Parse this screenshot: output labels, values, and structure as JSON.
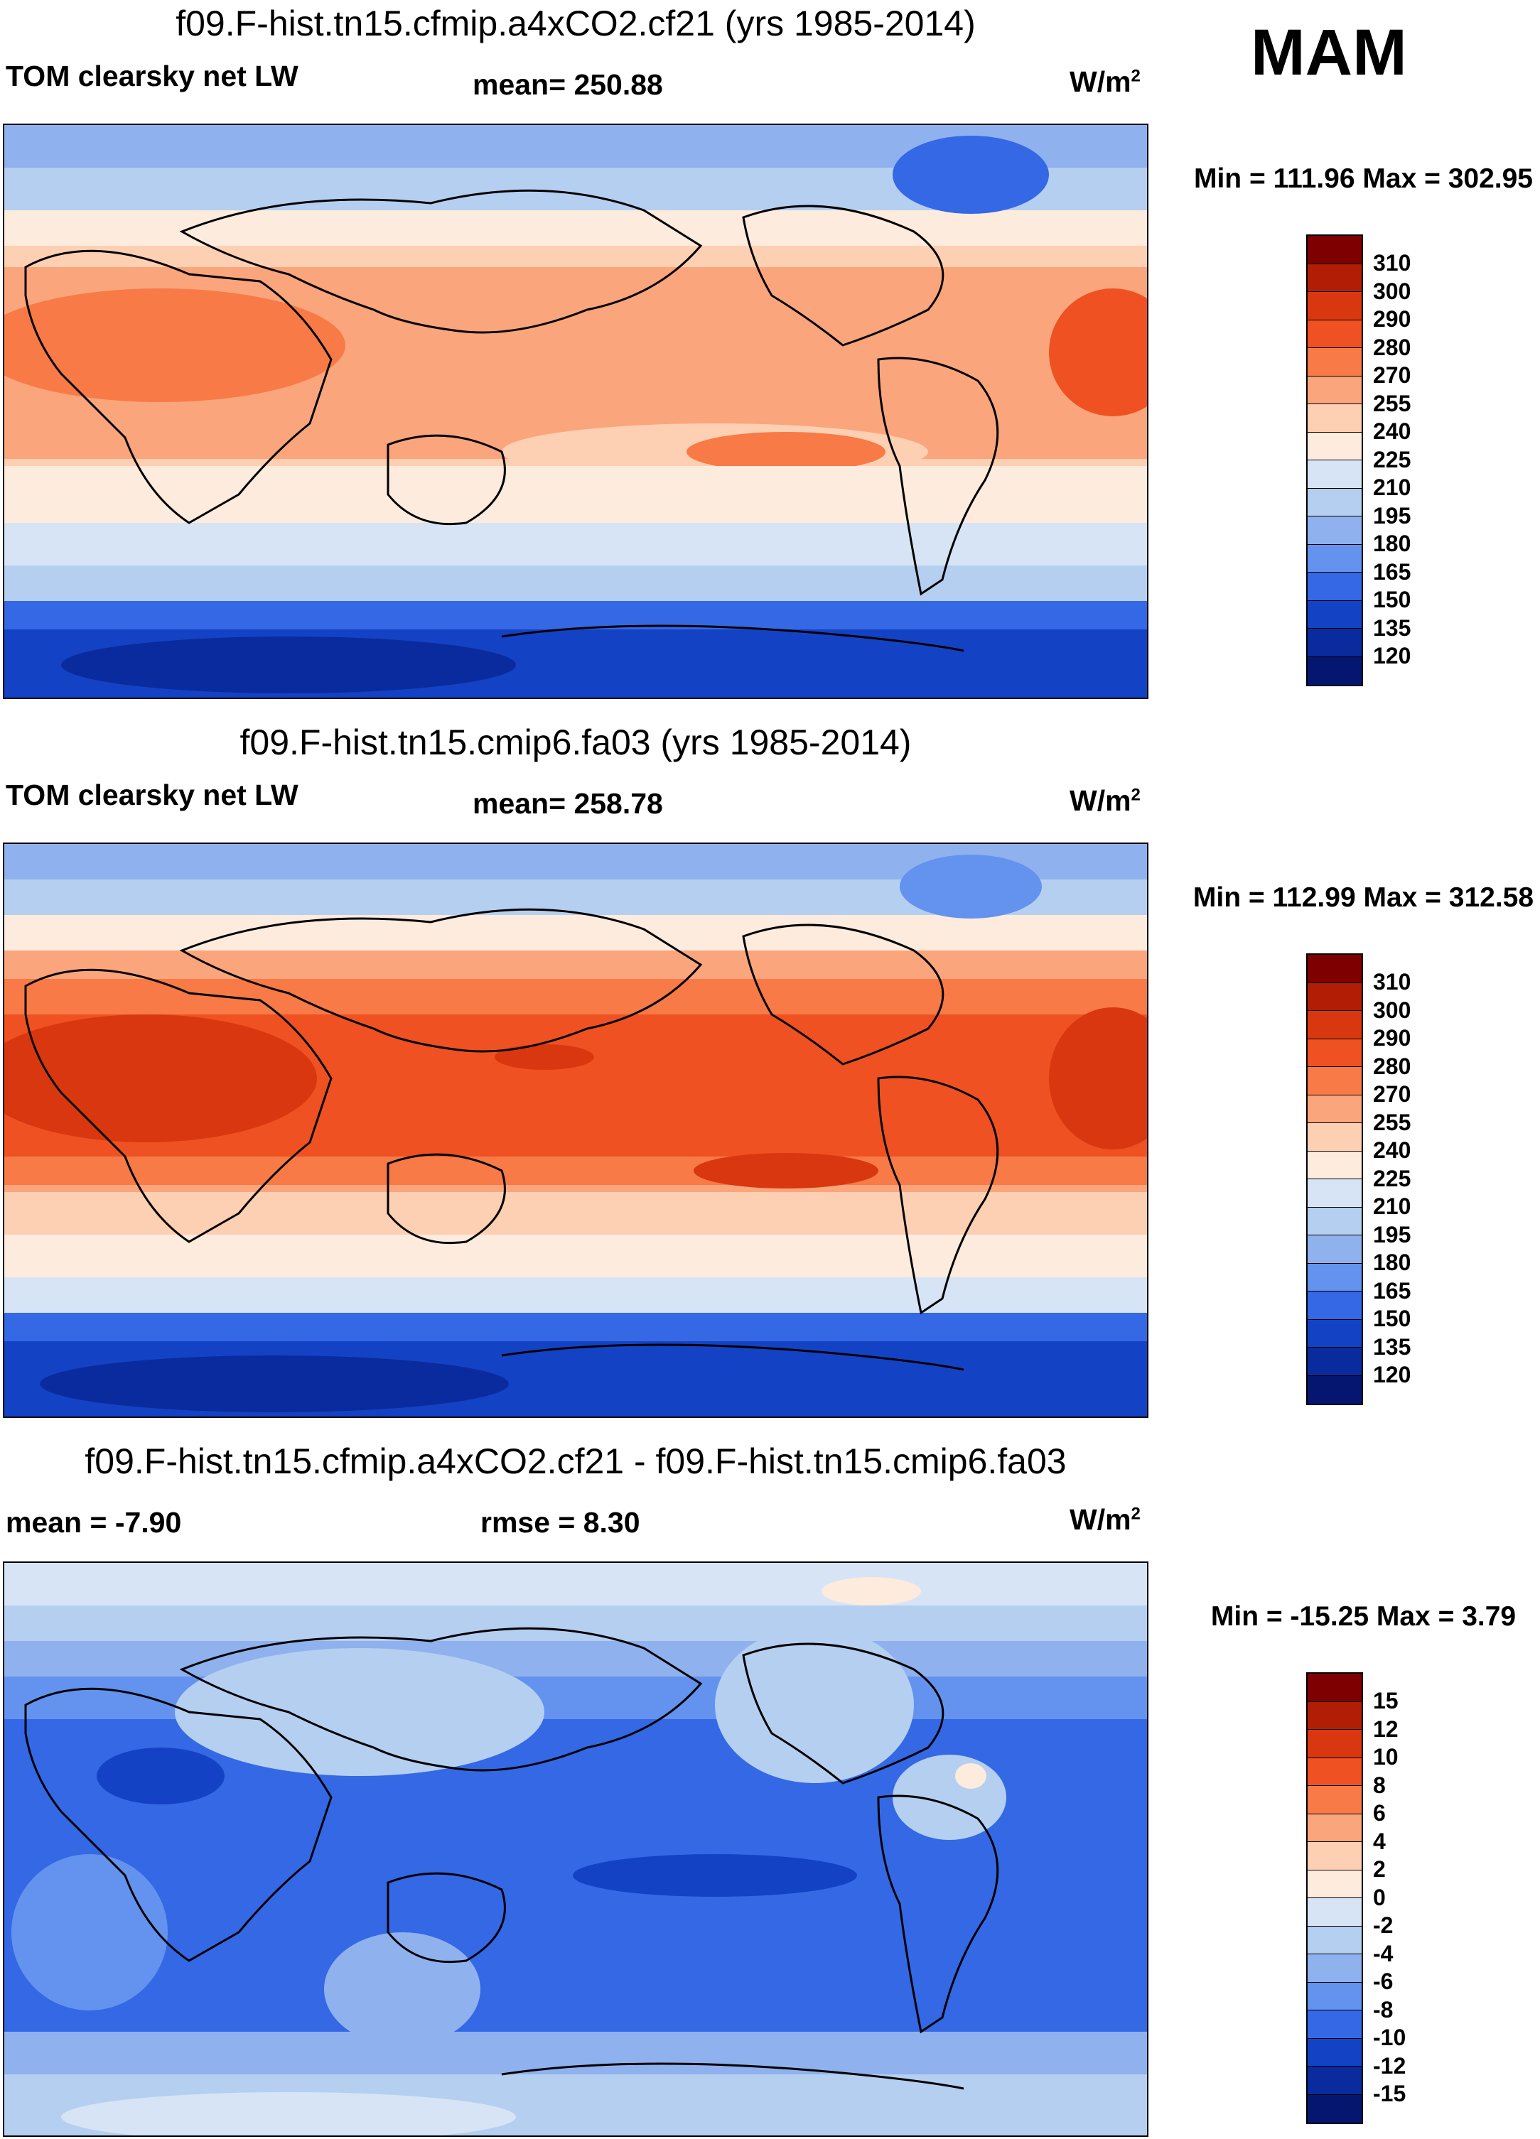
{
  "season": "MAM",
  "panels": [
    {
      "title": "f09.F-hist.tn15.cfmip.a4xCO2.cf21 (yrs 1985-2014)",
      "left_label": "TOM clearsky net LW",
      "center_label": "mean= 250.88",
      "units": "W/m",
      "units_sup": "2",
      "minmax": "Min = 111.96 Max = 302.95",
      "colorbar_labels": [
        "310",
        "300",
        "290",
        "280",
        "270",
        "255",
        "240",
        "225",
        "210",
        "195",
        "180",
        "165",
        "150",
        "135",
        "120"
      ]
    },
    {
      "title": "f09.F-hist.tn15.cmip6.fa03 (yrs 1985-2014)",
      "left_label": "TOM clearsky net LW",
      "center_label": "mean= 258.78",
      "units": "W/m",
      "units_sup": "2",
      "minmax": "Min = 112.99 Max = 312.58",
      "colorbar_labels": [
        "310",
        "300",
        "290",
        "280",
        "270",
        "255",
        "240",
        "225",
        "210",
        "195",
        "180",
        "165",
        "150",
        "135",
        "120"
      ]
    },
    {
      "title": "f09.F-hist.tn15.cfmip.a4xCO2.cf21 - f09.F-hist.tn15.cmip6.fa03",
      "left_label": "mean =  -7.90",
      "center_label": "rmse =   8.30",
      "units": "W/m",
      "units_sup": "2",
      "minmax": "Min = -15.25 Max =   3.79",
      "colorbar_labels": [
        "15",
        "12",
        "10",
        "8",
        "6",
        "4",
        "2",
        "0",
        "-2",
        "-4",
        "-6",
        "-8",
        "-10",
        "-12",
        "-15"
      ]
    }
  ],
  "colors": {
    "abs_scale": [
      "#7f0000",
      "#b21d05",
      "#d9370f",
      "#ef5122",
      "#f77a47",
      "#fba57d",
      "#fdd0b3",
      "#fdebde",
      "#d6e4f5",
      "#b5cff0",
      "#8fb1ee",
      "#6393ee",
      "#3468e5",
      "#1442c5",
      "#0a2b9d",
      "#041670"
    ],
    "diff_scale": [
      "#7f0000",
      "#b21d05",
      "#d9370f",
      "#ef5122",
      "#f77a47",
      "#fba57d",
      "#fdd0b3",
      "#fdebde",
      "#d6e4f5",
      "#b5cff0",
      "#8fb1ee",
      "#6393ee",
      "#3468e5",
      "#1442c5",
      "#0a2b9d",
      "#041670"
    ]
  }
}
